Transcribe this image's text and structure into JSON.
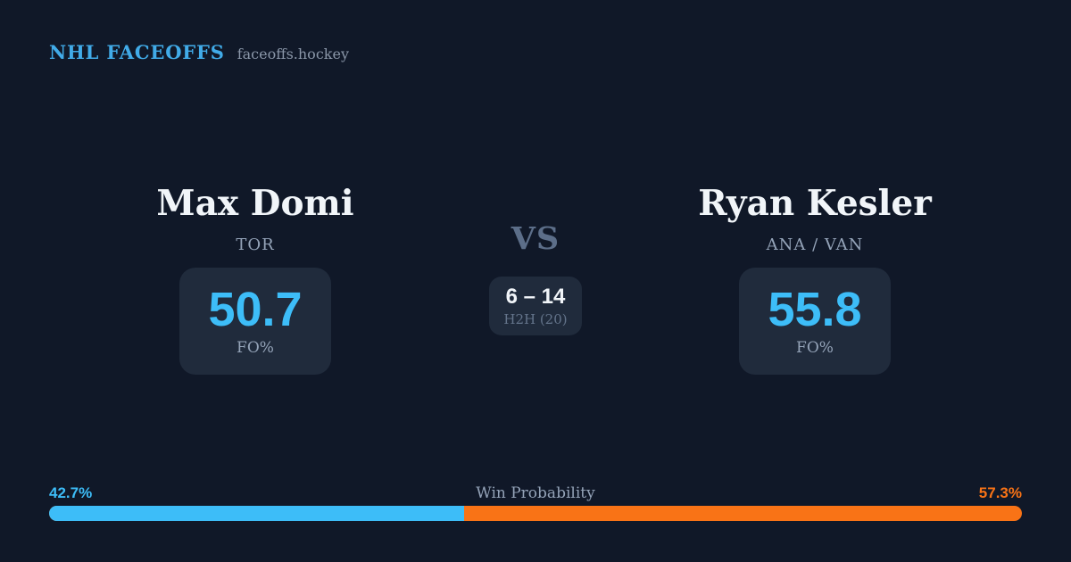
{
  "header": {
    "brand": "NHL FACEOFFS",
    "site": "faceoffs.hockey"
  },
  "player_left": {
    "name": "Max Domi",
    "team": "TOR",
    "value": "50.7",
    "value_label": "FO%"
  },
  "player_right": {
    "name": "Ryan Kesler",
    "team": "ANA / VAN",
    "value": "55.8",
    "value_label": "FO%"
  },
  "matchup": {
    "vs": "VS",
    "h2h_score": "6 – 14",
    "h2h_label": "H2H (20)"
  },
  "win_probability": {
    "label": "Win Probability",
    "left_pct_label": "42.7%",
    "right_pct_label": "57.3%",
    "left_pct": 42.7,
    "right_pct": 57.3,
    "left_bar_style": "width:42.7%"
  },
  "colors": {
    "background": "#101828",
    "card": "#202b3c",
    "brand_blue": "#41abe8",
    "accent_blue": "#3dbdf8",
    "accent_orange": "#f97316",
    "muted_text": "#94a3b8",
    "name_text": "#f1f5f9"
  }
}
